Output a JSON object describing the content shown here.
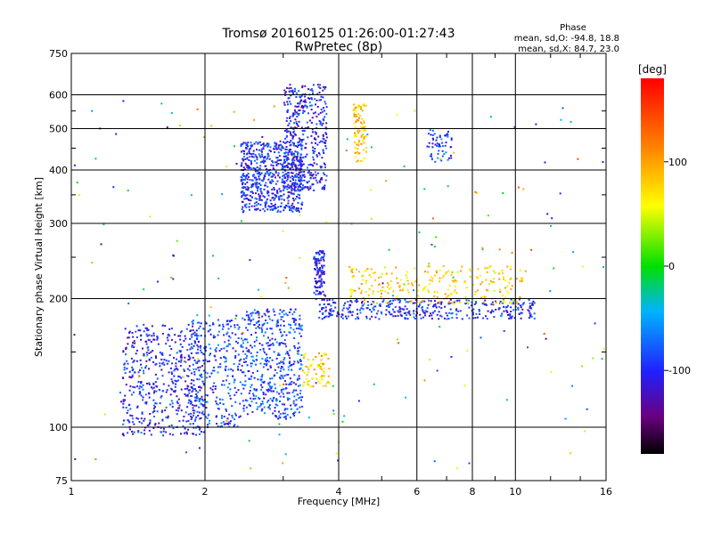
{
  "chart_data": {
    "type": "scatter",
    "title": "Tromsø 20160125 01:26:00-01:27:43",
    "subtitle": "RwPretec (8p)",
    "xlabel": "Frequency [MHz]",
    "ylabel": "Stationary phase Virtual Height [km]",
    "xscale": "log",
    "yscale": "log",
    "xlim": [
      1,
      16
    ],
    "ylim": [
      75,
      750
    ],
    "x_ticks": [
      1,
      2,
      4,
      6,
      8,
      10,
      16
    ],
    "y_ticks": [
      75,
      100,
      200,
      300,
      400,
      500,
      600,
      750
    ],
    "grid": true,
    "phase_info": {
      "title": "Phase",
      "line_o": "mean, sd,O: -94.8, 18.8",
      "line_x": "mean, sd,X:  84.7, 23.0"
    },
    "colorbar": {
      "label": "[deg]",
      "ticks": [
        100,
        0,
        -100
      ],
      "range": [
        -180,
        180
      ]
    },
    "clusters": [
      {
        "f": [
          1.3,
          2.0
        ],
        "h": [
          96,
          175
        ],
        "phase": -110,
        "n": 520
      },
      {
        "f": [
          1.85,
          2.4
        ],
        "h": [
          100,
          180
        ],
        "phase": -95,
        "n": 260
      },
      {
        "f": [
          2.4,
          3.3
        ],
        "h": [
          105,
          190
        ],
        "phase": -95,
        "n": 480
      },
      {
        "f": [
          3.3,
          3.8
        ],
        "h": [
          125,
          150
        ],
        "phase": 85,
        "n": 70
      },
      {
        "f": [
          2.4,
          3.3
        ],
        "h": [
          320,
          470
        ],
        "phase": -105,
        "n": 620
      },
      {
        "f": [
          3.0,
          3.75
        ],
        "h": [
          360,
          640
        ],
        "phase": -110,
        "n": 420
      },
      {
        "f": [
          4.3,
          4.6
        ],
        "h": [
          420,
          580
        ],
        "phase": 88,
        "n": 90
      },
      {
        "f": [
          3.5,
          3.7
        ],
        "h": [
          205,
          260
        ],
        "phase": -115,
        "n": 110
      },
      {
        "f": [
          3.6,
          11.0
        ],
        "h": [
          180,
          200
        ],
        "phase": -105,
        "n": 380
      },
      {
        "f": [
          4.2,
          10.5
        ],
        "h": [
          195,
          240
        ],
        "phase": 80,
        "n": 260
      },
      {
        "f": [
          6.3,
          7.2
        ],
        "h": [
          420,
          500
        ],
        "phase": -100,
        "n": 60
      },
      {
        "f": [
          1.0,
          16.0
        ],
        "h": [
          80,
          600
        ],
        "phase": 0,
        "n": 200
      }
    ]
  }
}
